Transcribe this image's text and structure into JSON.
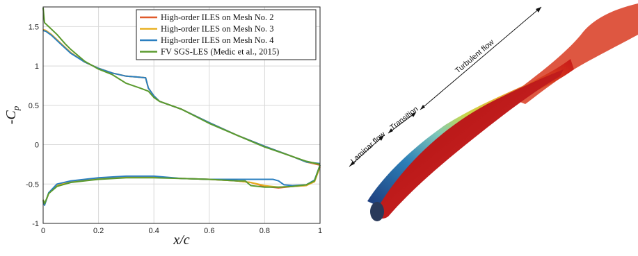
{
  "chart_data": {
    "type": "line",
    "xlabel": "x/c",
    "ylabel": "-C_p",
    "xlim": [
      0,
      1
    ],
    "ylim": [
      -1,
      1.75
    ],
    "xticks": [
      "0",
      "0.2",
      "0.4",
      "0.6",
      "0.8",
      "1"
    ],
    "yticks": [
      "-1",
      "-0.5",
      "0",
      "0.5",
      "1",
      "1.5"
    ],
    "xtick_values": [
      0,
      0.2,
      0.4,
      0.6,
      0.8,
      1
    ],
    "ytick_values": [
      -1,
      -0.5,
      0,
      0.5,
      1,
      1.5
    ],
    "grid": true,
    "legend_position": "top-right",
    "series": [
      {
        "name": "High-order ILES on Mesh No. 2",
        "color": "#e05a2b",
        "upper": [
          [
            0,
            1.46
          ],
          [
            0.01,
            1.45
          ],
          [
            0.03,
            1.4
          ],
          [
            0.06,
            1.3
          ],
          [
            0.1,
            1.17
          ],
          [
            0.15,
            1.05
          ],
          [
            0.2,
            0.97
          ],
          [
            0.25,
            0.91
          ],
          [
            0.3,
            0.87
          ],
          [
            0.34,
            0.86
          ],
          [
            0.37,
            0.85
          ],
          [
            0.38,
            0.72
          ],
          [
            0.4,
            0.62
          ],
          [
            0.42,
            0.55
          ],
          [
            0.5,
            0.45
          ],
          [
            0.6,
            0.28
          ],
          [
            0.7,
            0.12
          ],
          [
            0.8,
            -0.02
          ],
          [
            0.9,
            -0.15
          ],
          [
            0.95,
            -0.22
          ],
          [
            1.0,
            -0.26
          ]
        ],
        "lower": [
          [
            0,
            -0.7
          ],
          [
            0.005,
            -0.76
          ],
          [
            0.02,
            -0.62
          ],
          [
            0.05,
            -0.52
          ],
          [
            0.1,
            -0.47
          ],
          [
            0.2,
            -0.43
          ],
          [
            0.3,
            -0.41
          ],
          [
            0.4,
            -0.41
          ],
          [
            0.5,
            -0.43
          ],
          [
            0.6,
            -0.44
          ],
          [
            0.7,
            -0.46
          ],
          [
            0.75,
            -0.48
          ],
          [
            0.8,
            -0.53
          ],
          [
            0.85,
            -0.55
          ],
          [
            0.9,
            -0.53
          ],
          [
            0.95,
            -0.52
          ],
          [
            0.98,
            -0.47
          ],
          [
            1.0,
            -0.28
          ]
        ]
      },
      {
        "name": "High-order ILES on Mesh No. 3",
        "color": "#e8b020",
        "upper": [
          [
            0,
            1.46
          ],
          [
            0.01,
            1.45
          ],
          [
            0.03,
            1.4
          ],
          [
            0.06,
            1.3
          ],
          [
            0.1,
            1.17
          ],
          [
            0.15,
            1.05
          ],
          [
            0.2,
            0.97
          ],
          [
            0.25,
            0.91
          ],
          [
            0.3,
            0.87
          ],
          [
            0.34,
            0.86
          ],
          [
            0.37,
            0.85
          ],
          [
            0.38,
            0.72
          ],
          [
            0.4,
            0.62
          ],
          [
            0.42,
            0.55
          ],
          [
            0.5,
            0.45
          ],
          [
            0.6,
            0.28
          ],
          [
            0.7,
            0.12
          ],
          [
            0.8,
            -0.02
          ],
          [
            0.9,
            -0.15
          ],
          [
            0.95,
            -0.22
          ],
          [
            1.0,
            -0.25
          ]
        ],
        "lower": [
          [
            0,
            -0.7
          ],
          [
            0.005,
            -0.76
          ],
          [
            0.02,
            -0.62
          ],
          [
            0.05,
            -0.52
          ],
          [
            0.1,
            -0.47
          ],
          [
            0.2,
            -0.43
          ],
          [
            0.3,
            -0.41
          ],
          [
            0.4,
            -0.41
          ],
          [
            0.5,
            -0.43
          ],
          [
            0.6,
            -0.44
          ],
          [
            0.7,
            -0.46
          ],
          [
            0.75,
            -0.48
          ],
          [
            0.8,
            -0.52
          ],
          [
            0.85,
            -0.54
          ],
          [
            0.9,
            -0.53
          ],
          [
            0.95,
            -0.52
          ],
          [
            0.98,
            -0.47
          ],
          [
            1.0,
            -0.28
          ]
        ]
      },
      {
        "name": "High-order ILES on Mesh No. 4",
        "color": "#2a7fc0",
        "upper": [
          [
            0,
            1.45
          ],
          [
            0.01,
            1.44
          ],
          [
            0.03,
            1.39
          ],
          [
            0.06,
            1.29
          ],
          [
            0.1,
            1.16
          ],
          [
            0.15,
            1.05
          ],
          [
            0.2,
            0.97
          ],
          [
            0.25,
            0.91
          ],
          [
            0.3,
            0.87
          ],
          [
            0.34,
            0.86
          ],
          [
            0.37,
            0.85
          ],
          [
            0.38,
            0.72
          ],
          [
            0.4,
            0.62
          ],
          [
            0.42,
            0.55
          ],
          [
            0.5,
            0.45
          ],
          [
            0.6,
            0.28
          ],
          [
            0.7,
            0.12
          ],
          [
            0.8,
            -0.02
          ],
          [
            0.9,
            -0.15
          ],
          [
            0.95,
            -0.22
          ],
          [
            1.0,
            -0.24
          ]
        ],
        "lower": [
          [
            0,
            -0.72
          ],
          [
            0.005,
            -0.77
          ],
          [
            0.02,
            -0.61
          ],
          [
            0.05,
            -0.5
          ],
          [
            0.1,
            -0.46
          ],
          [
            0.2,
            -0.42
          ],
          [
            0.3,
            -0.4
          ],
          [
            0.4,
            -0.4
          ],
          [
            0.5,
            -0.43
          ],
          [
            0.6,
            -0.44
          ],
          [
            0.7,
            -0.44
          ],
          [
            0.8,
            -0.44
          ],
          [
            0.83,
            -0.44
          ],
          [
            0.85,
            -0.46
          ],
          [
            0.87,
            -0.51
          ],
          [
            0.9,
            -0.52
          ],
          [
            0.95,
            -0.51
          ],
          [
            0.98,
            -0.45
          ],
          [
            1.0,
            -0.26
          ]
        ]
      },
      {
        "name": "FV SGS-LES (Medic et al., 2015)",
        "color": "#5a9a2e",
        "upper": [
          [
            0,
            1.74
          ],
          [
            0.005,
            1.55
          ],
          [
            0.02,
            1.5
          ],
          [
            0.05,
            1.4
          ],
          [
            0.08,
            1.28
          ],
          [
            0.1,
            1.21
          ],
          [
            0.15,
            1.06
          ],
          [
            0.2,
            0.96
          ],
          [
            0.25,
            0.89
          ],
          [
            0.3,
            0.78
          ],
          [
            0.35,
            0.72
          ],
          [
            0.38,
            0.68
          ],
          [
            0.4,
            0.6
          ],
          [
            0.42,
            0.55
          ],
          [
            0.5,
            0.45
          ],
          [
            0.6,
            0.27
          ],
          [
            0.7,
            0.12
          ],
          [
            0.8,
            -0.03
          ],
          [
            0.9,
            -0.15
          ],
          [
            0.95,
            -0.21
          ],
          [
            1.0,
            -0.25
          ]
        ],
        "lower": [
          [
            0,
            -0.7
          ],
          [
            0.005,
            -0.75
          ],
          [
            0.02,
            -0.62
          ],
          [
            0.05,
            -0.53
          ],
          [
            0.1,
            -0.48
          ],
          [
            0.2,
            -0.44
          ],
          [
            0.3,
            -0.42
          ],
          [
            0.4,
            -0.42
          ],
          [
            0.5,
            -0.43
          ],
          [
            0.6,
            -0.44
          ],
          [
            0.7,
            -0.46
          ],
          [
            0.73,
            -0.46
          ],
          [
            0.75,
            -0.52
          ],
          [
            0.8,
            -0.54
          ],
          [
            0.85,
            -0.54
          ],
          [
            0.9,
            -0.53
          ],
          [
            0.95,
            -0.51
          ],
          [
            0.98,
            -0.46
          ],
          [
            1.0,
            -0.26
          ]
        ]
      }
    ]
  },
  "flow_annotations": {
    "laminar": "Laminar flow",
    "transition": "Transition",
    "turbulent": "Turbulent flow"
  }
}
